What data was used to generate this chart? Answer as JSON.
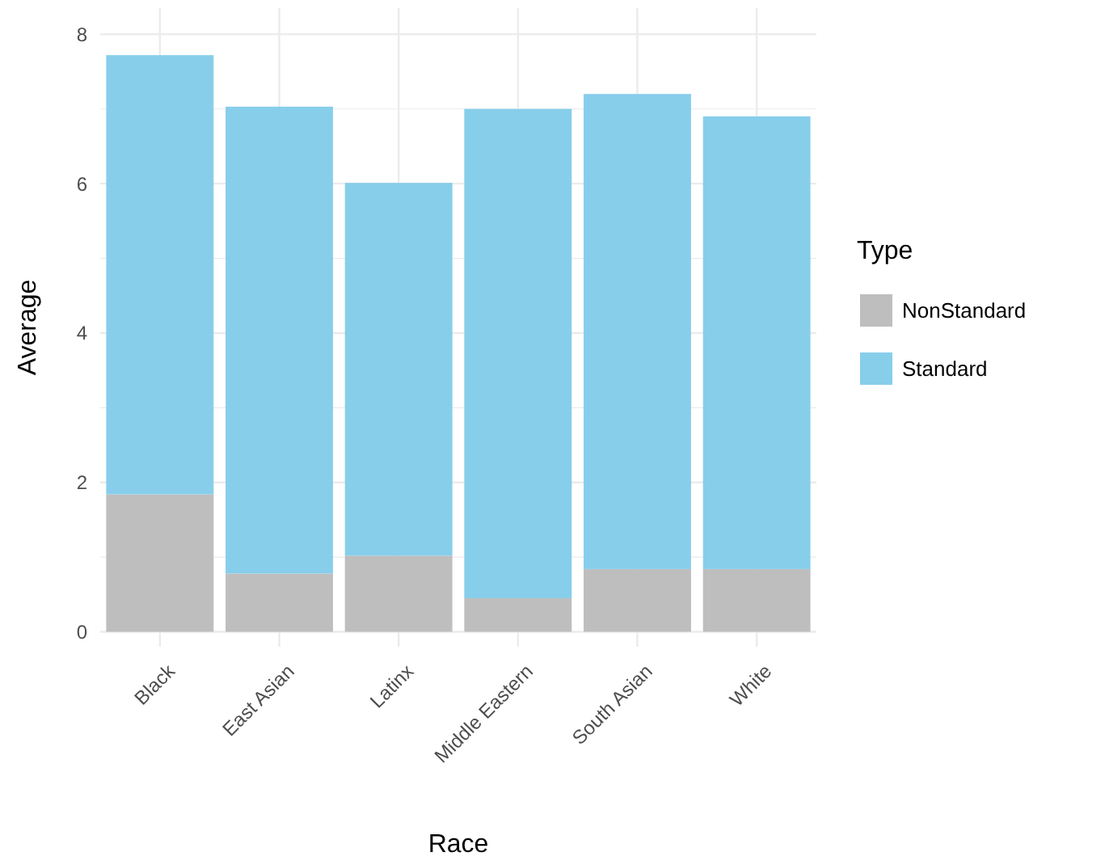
{
  "chart_data": {
    "type": "bar",
    "stacked": true,
    "xlabel": "Race",
    "ylabel": "Average",
    "legend_title": "Type",
    "legend": "right",
    "grid": true,
    "categories": [
      "Black",
      "East Asian",
      "Latinx",
      "Middle Eastern",
      "South Asian",
      "White"
    ],
    "series": [
      {
        "name": "NonStandard",
        "color": "#bebebe",
        "values": [
          1.84,
          0.78,
          1.02,
          0.45,
          0.84,
          0.84
        ]
      },
      {
        "name": "Standard",
        "color": "#87ceeb",
        "values": [
          5.88,
          6.25,
          4.99,
          6.55,
          6.36,
          6.06
        ]
      }
    ],
    "ylim": [
      -0.2,
      8.35
    ],
    "yticks": [
      0,
      {
        "value": 1,
        "label": null
      },
      2,
      {
        "value": 3,
        "label": null
      },
      4,
      {
        "value": 5,
        "label": null
      },
      6,
      {
        "value": 7,
        "label": null
      },
      8
    ]
  }
}
